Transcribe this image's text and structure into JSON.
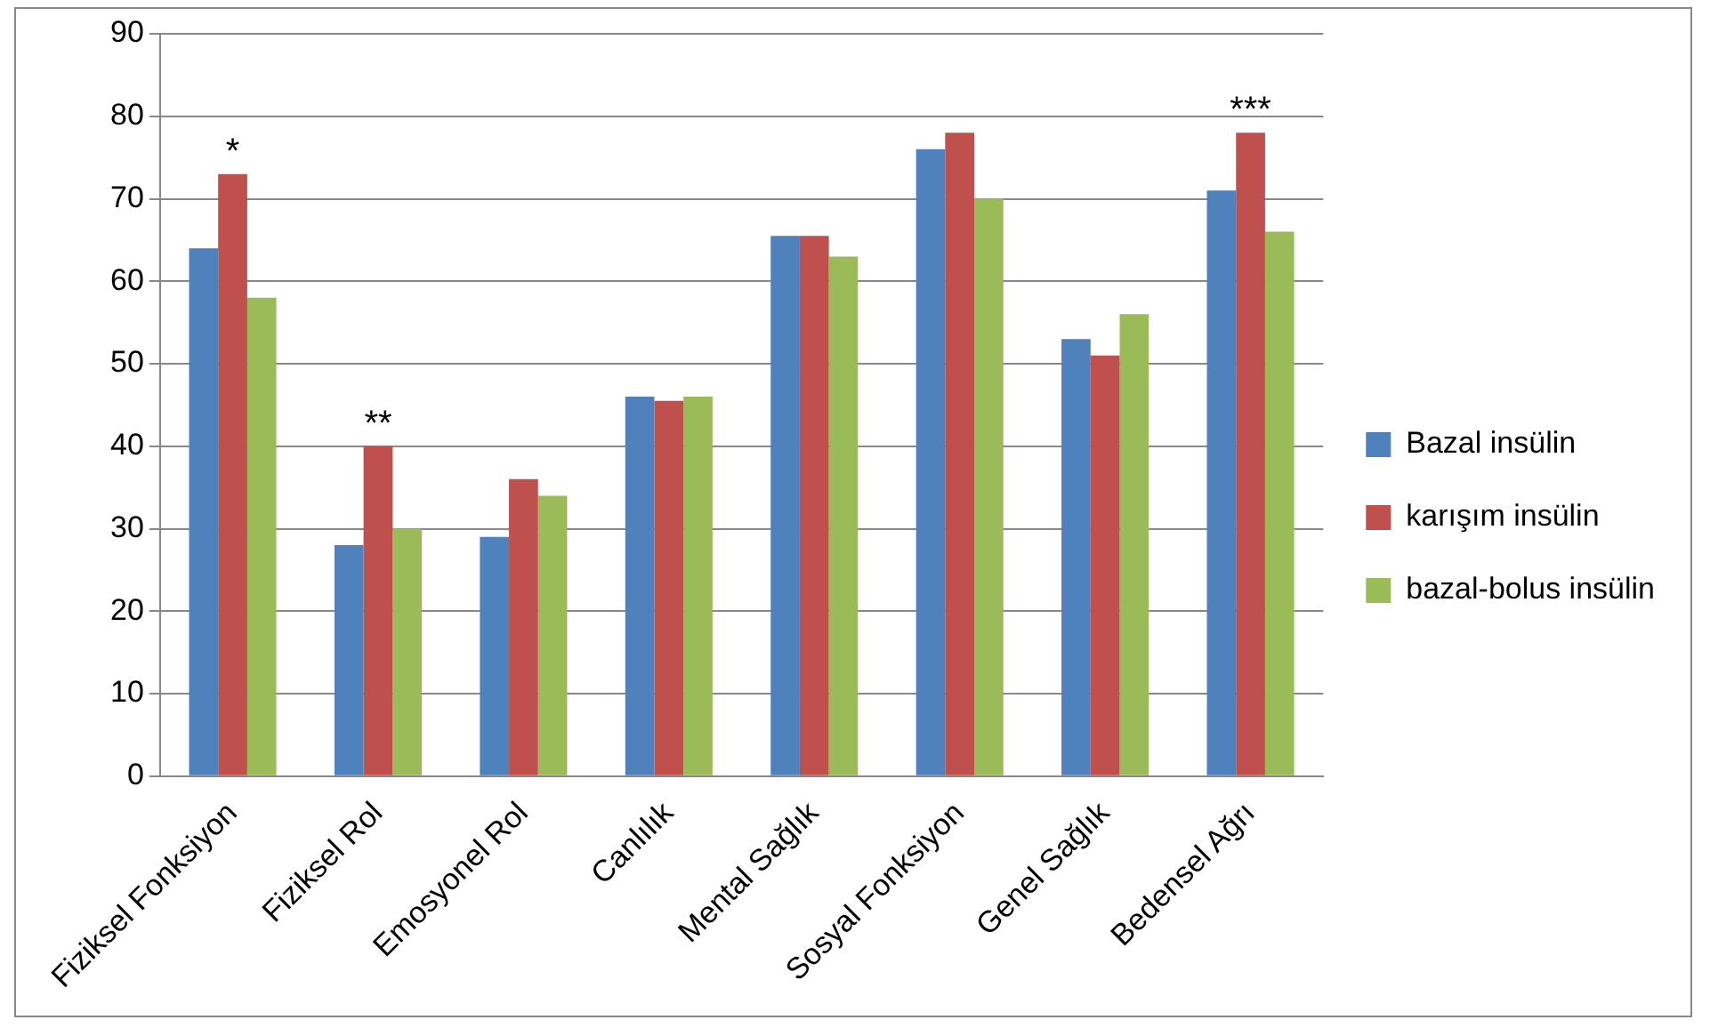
{
  "chart_data": {
    "type": "bar",
    "categories": [
      "Fiziksel Fonksiyon",
      "Fiziksel Rol",
      "Emosyonel Rol",
      "Canlılık",
      "Mental Sağlık",
      "Sosyal Fonksiyon",
      "Genel Sağlık",
      "Bedensel Ağrı"
    ],
    "series": [
      {
        "name": "Bazal insülin",
        "color": "#4f81bd",
        "values": [
          64,
          28,
          29,
          46,
          65.5,
          76,
          53,
          71
        ]
      },
      {
        "name": "karışım insülin",
        "color": "#c0504d",
        "values": [
          73,
          40,
          36,
          45.5,
          65.5,
          78,
          51,
          78
        ]
      },
      {
        "name": "bazal-bolus insülin",
        "color": "#9bbb59",
        "values": [
          58,
          30,
          34,
          46,
          63,
          70,
          56,
          66
        ]
      }
    ],
    "ylim": [
      0,
      90
    ],
    "yticks": [
      0,
      10,
      20,
      30,
      40,
      50,
      60,
      70,
      80,
      90
    ],
    "grid": "y",
    "legend": "right",
    "annotations": [
      {
        "text": "*",
        "x": "Fiziksel Fonksiyon",
        "y": 73
      },
      {
        "text": "**",
        "x": "Fiziksel Rol",
        "y": 40
      },
      {
        "text": "***",
        "x": "Bedensel Ağrı",
        "y": 78
      }
    ]
  }
}
